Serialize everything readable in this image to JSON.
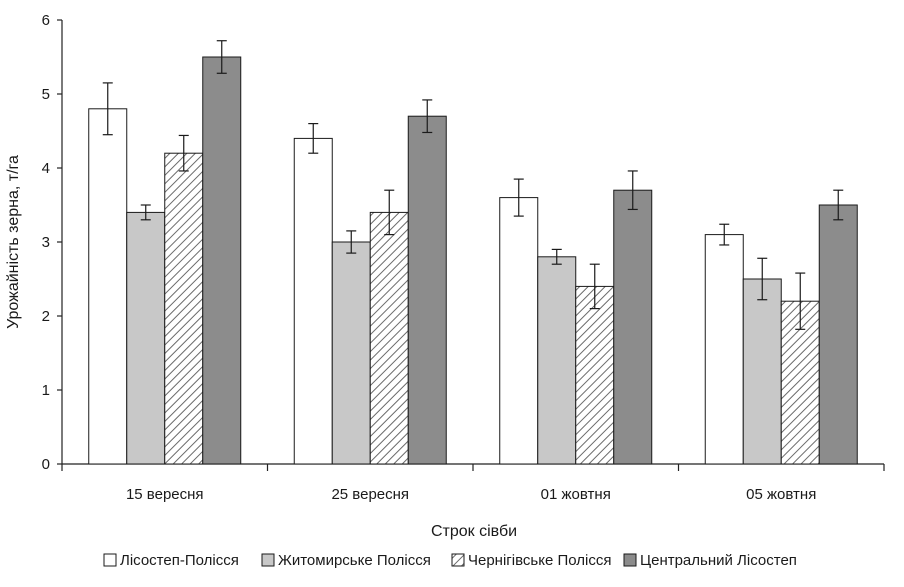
{
  "chart_data": {
    "type": "bar",
    "title": "",
    "xlabel": "Строк сівби",
    "ylabel": "Урожайність зерна, т/га",
    "ylim": [
      0,
      6
    ],
    "yticks": [
      "0",
      "1",
      "2",
      "3",
      "4",
      "5",
      "6"
    ],
    "categories": [
      "15 вересня",
      "25 вересня",
      "01 жовтня",
      "05 жовтня"
    ],
    "series": [
      {
        "name": "Лісостеп-Полісся",
        "values": [
          4.8,
          4.4,
          3.6,
          3.1
        ],
        "errors": [
          0.35,
          0.2,
          0.25,
          0.14
        ],
        "fill": "#ffffff",
        "pattern": "none"
      },
      {
        "name": "Житомирське Полісся",
        "values": [
          3.4,
          3.0,
          2.8,
          2.5
        ],
        "errors": [
          0.1,
          0.15,
          0.1,
          0.28
        ],
        "fill": "#c8c8c8",
        "pattern": "none"
      },
      {
        "name": "Чернігівське Полісся",
        "values": [
          4.2,
          3.4,
          2.4,
          2.2
        ],
        "errors": [
          0.24,
          0.3,
          0.3,
          0.38
        ],
        "fill": "#ffffff",
        "pattern": "diagonal-hatch"
      },
      {
        "name": "Центральний Лісостеп",
        "values": [
          5.5,
          4.7,
          3.7,
          3.5
        ],
        "errors": [
          0.22,
          0.22,
          0.26,
          0.2
        ],
        "fill": "#8c8c8c",
        "pattern": "none"
      }
    ],
    "grid": false,
    "legend_position": "bottom",
    "error_bars": true
  }
}
